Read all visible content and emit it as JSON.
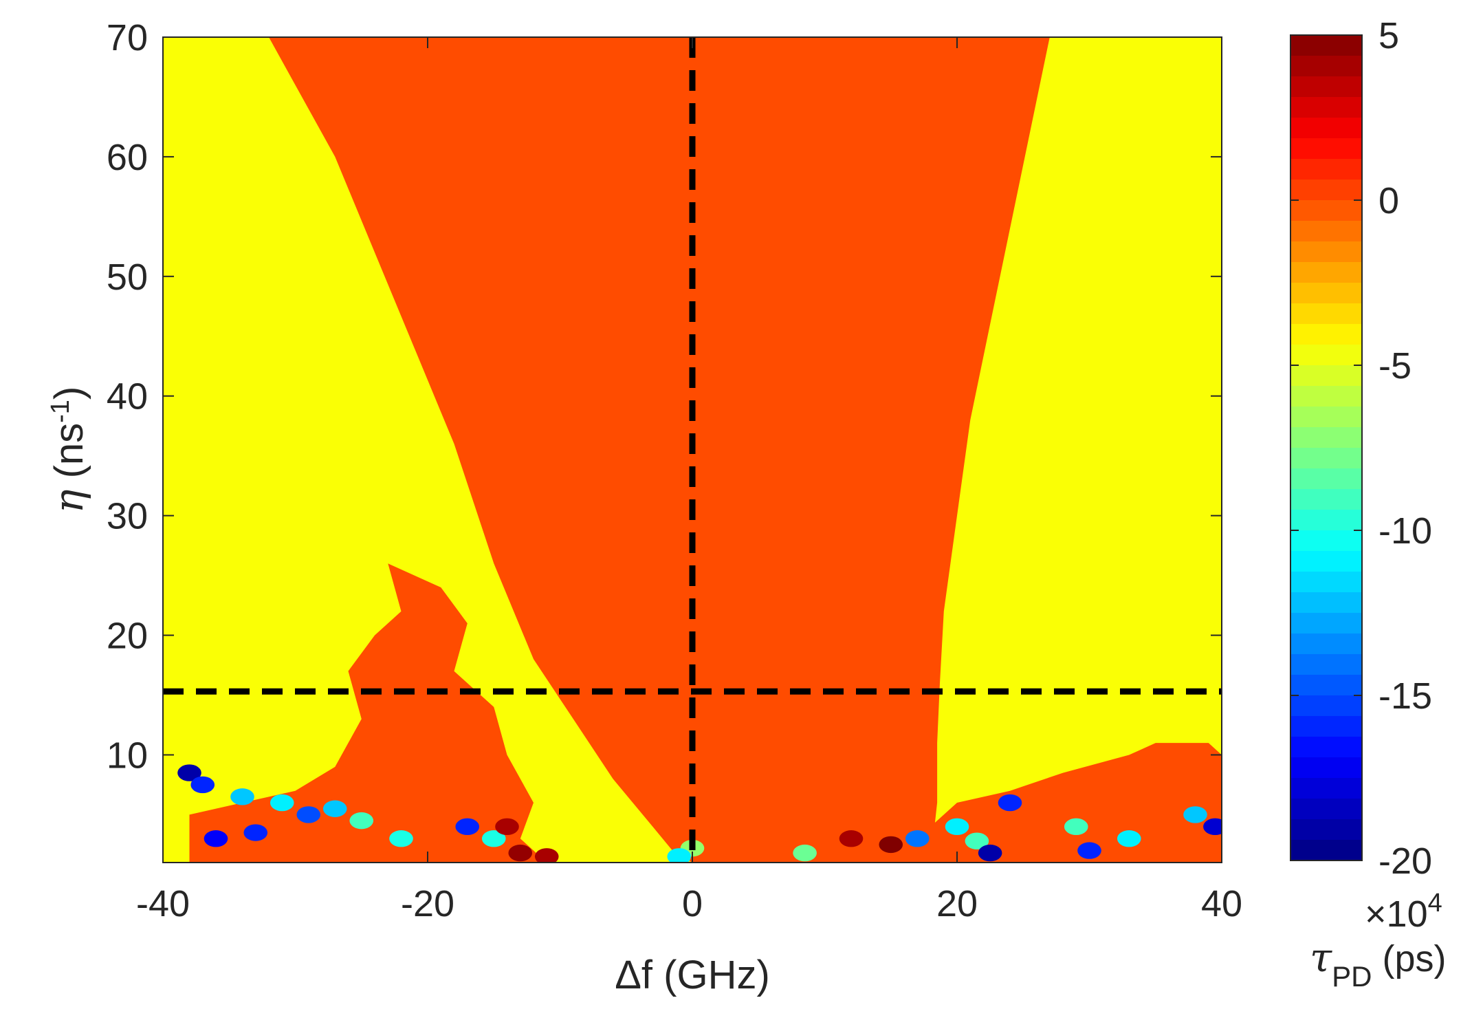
{
  "chart_data": {
    "type": "heatmap",
    "subtype": "filled-contour",
    "xlabel": "Δf (GHz)",
    "ylabel": {
      "symbol": "η",
      "text": " (ns",
      "sup": "-1",
      "close": ")"
    },
    "xlim": [
      -40,
      40
    ],
    "ylim": [
      1,
      70
    ],
    "xticks": [
      -40,
      -20,
      0,
      20,
      40
    ],
    "yticks": [
      10,
      20,
      30,
      40,
      50,
      60,
      70
    ],
    "xtick_labels": [
      "-40",
      "-20",
      "0",
      "20",
      "40"
    ],
    "ytick_labels": [
      "10",
      "20",
      "30",
      "40",
      "50",
      "60",
      "70"
    ],
    "grid": false,
    "colorbar": {
      "label_symbol": "τ",
      "label_sub": "PD",
      "label_unit": " (ps)",
      "multiplier": "×10",
      "multiplier_exp": "4",
      "lim": [
        -20,
        5
      ],
      "ticks": [
        5,
        0,
        -5,
        -10,
        -15,
        -20
      ],
      "tick_labels": [
        "5",
        "0",
        "-5",
        "-10",
        "-15",
        "-20"
      ],
      "colormap": "jet"
    },
    "background_value": -4.5,
    "regions": [
      {
        "name": "central-region",
        "value": 0,
        "left_boundary": [
          [
            -32,
            70
          ],
          [
            -30,
            66
          ],
          [
            -27,
            60
          ],
          [
            -24,
            52
          ],
          [
            -21,
            44
          ],
          [
            -18,
            36
          ],
          [
            -15,
            26
          ],
          [
            -12,
            18
          ],
          [
            -9,
            13
          ],
          [
            -6,
            8
          ],
          [
            -3,
            4
          ],
          [
            -1.5,
            2
          ],
          [
            0,
            1
          ]
        ],
        "right_boundary": [
          [
            0,
            1
          ],
          [
            18,
            1
          ],
          [
            18.5,
            6
          ],
          [
            18.5,
            11
          ],
          [
            18.7,
            16
          ],
          [
            19,
            22
          ],
          [
            20,
            30
          ],
          [
            21,
            38
          ],
          [
            22.5,
            46
          ],
          [
            24,
            54
          ],
          [
            25.5,
            62
          ],
          [
            27,
            70
          ]
        ]
      },
      {
        "name": "left-patch",
        "value": 0,
        "polygon": [
          [
            -38,
            1
          ],
          [
            -38,
            5
          ],
          [
            -34,
            6
          ],
          [
            -30,
            7
          ],
          [
            -27,
            9
          ],
          [
            -25,
            13
          ],
          [
            -26,
            17
          ],
          [
            -24,
            20
          ],
          [
            -22,
            22
          ],
          [
            -23,
            26
          ],
          [
            -19,
            24
          ],
          [
            -17,
            21
          ],
          [
            -18,
            17
          ],
          [
            -15,
            14
          ],
          [
            -14,
            10
          ],
          [
            -12,
            6
          ],
          [
            -13,
            3
          ],
          [
            -11,
            1
          ]
        ]
      },
      {
        "name": "right-patch",
        "value": 0,
        "polygon": [
          [
            17,
            1
          ],
          [
            18,
            4
          ],
          [
            20,
            6
          ],
          [
            24,
            7
          ],
          [
            28,
            8.5
          ],
          [
            33,
            10
          ],
          [
            35,
            11
          ],
          [
            39,
            11
          ],
          [
            40,
            10
          ],
          [
            40,
            1
          ]
        ]
      }
    ],
    "blobs": [
      {
        "x": -38,
        "y": 8.5,
        "value": -19
      },
      {
        "x": -37,
        "y": 7.5,
        "value": -16
      },
      {
        "x": -34,
        "y": 6.5,
        "value": -12
      },
      {
        "x": -31,
        "y": 6,
        "value": -11
      },
      {
        "x": -29,
        "y": 5,
        "value": -15
      },
      {
        "x": -27,
        "y": 5.5,
        "value": -12
      },
      {
        "x": -25,
        "y": 4.5,
        "value": -9
      },
      {
        "x": -36,
        "y": 3,
        "value": -17
      },
      {
        "x": -33,
        "y": 3.5,
        "value": -16
      },
      {
        "x": -22,
        "y": 3,
        "value": -10
      },
      {
        "x": -17,
        "y": 4,
        "value": -16
      },
      {
        "x": -15,
        "y": 3,
        "value": -10
      },
      {
        "x": -14,
        "y": 4,
        "value": 4
      },
      {
        "x": -13,
        "y": 1.8,
        "value": 4.5
      },
      {
        "x": -11,
        "y": 1.5,
        "value": 4
      },
      {
        "x": 0,
        "y": 2.2,
        "value": -7
      },
      {
        "x": -1,
        "y": 1.5,
        "value": -11
      },
      {
        "x": 8.5,
        "y": 1.8,
        "value": -8
      },
      {
        "x": 12,
        "y": 3,
        "value": 4
      },
      {
        "x": 15,
        "y": 2.5,
        "value": 5
      },
      {
        "x": 17,
        "y": 3,
        "value": -14
      },
      {
        "x": 20,
        "y": 4,
        "value": -11
      },
      {
        "x": 21.5,
        "y": 2.8,
        "value": -9
      },
      {
        "x": 22.5,
        "y": 1.8,
        "value": -19
      },
      {
        "x": 24,
        "y": 6,
        "value": -16
      },
      {
        "x": 29,
        "y": 4,
        "value": -9
      },
      {
        "x": 30,
        "y": 2,
        "value": -16
      },
      {
        "x": 33,
        "y": 3,
        "value": -11
      },
      {
        "x": 38,
        "y": 5,
        "value": -12
      },
      {
        "x": 39.5,
        "y": 4,
        "value": -18
      }
    ],
    "dashed_lines": [
      {
        "orientation": "vertical",
        "x": 0
      },
      {
        "orientation": "horizontal",
        "y": 15.3
      }
    ]
  }
}
